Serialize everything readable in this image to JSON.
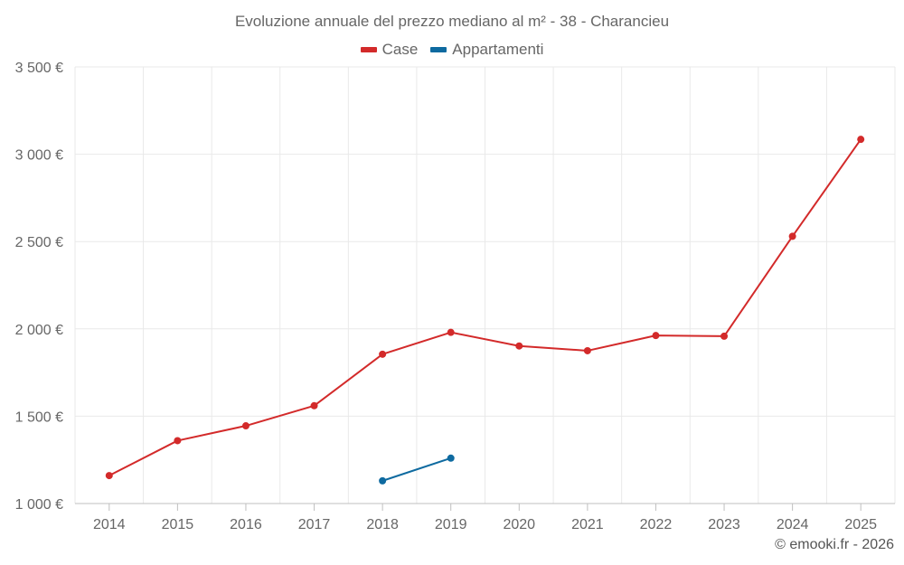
{
  "colors": {
    "case": "#d32a2a",
    "appartamenti": "#0e6aa0",
    "grid": "#e9e9e9",
    "axis": "#bfbfbf"
  },
  "legend": {
    "items": [
      {
        "label": "Case",
        "color": "#d32a2a"
      },
      {
        "label": "Appartamenti",
        "color": "#0e6aa0"
      }
    ]
  },
  "credit": "© emooki.fr - 2026",
  "chart_data": {
    "type": "line",
    "title": "Evoluzione annuale del prezzo mediano al m² - 38 - Charancieu",
    "xlabel": "",
    "ylabel": "",
    "categories": [
      "2014",
      "2015",
      "2016",
      "2017",
      "2018",
      "2019",
      "2020",
      "2021",
      "2022",
      "2023",
      "2024",
      "2025"
    ],
    "ylim": [
      1000,
      3500
    ],
    "yticks": [
      1000,
      1500,
      2000,
      2500,
      3000,
      3500
    ],
    "ytick_labels": [
      "1 000 €",
      "1 500 €",
      "2 000 €",
      "2 500 €",
      "3 000 €",
      "3 500 €"
    ],
    "grid": true,
    "legend_position": "top-center",
    "series": [
      {
        "name": "Case",
        "color": "#d32a2a",
        "values": [
          1160,
          1360,
          1445,
          1560,
          1855,
          1980,
          1902,
          1875,
          1962,
          1958,
          2530,
          3085
        ]
      },
      {
        "name": "Appartamenti",
        "color": "#0e6aa0",
        "values": [
          null,
          null,
          null,
          null,
          1130,
          1260,
          null,
          null,
          null,
          null,
          null,
          null
        ]
      }
    ]
  }
}
